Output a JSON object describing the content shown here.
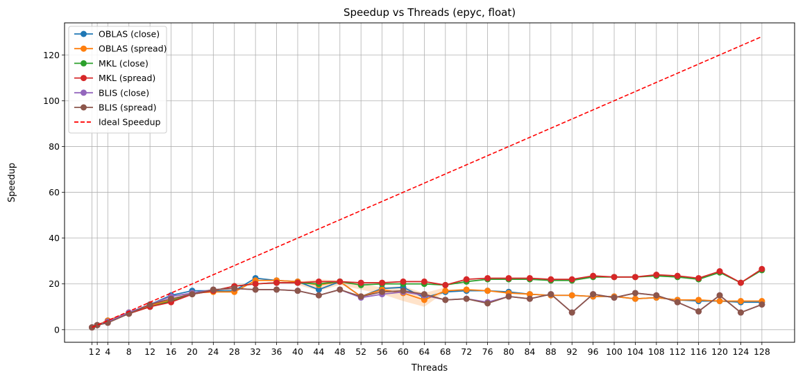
{
  "chart_data": {
    "type": "line",
    "title": "Speedup vs Threads (epyc, float)",
    "xlabel": "Threads",
    "ylabel": "Speedup",
    "xlim": [
      -4.2,
      134.2
    ],
    "ylim": [
      -5.5,
      134
    ],
    "xticks": [
      1,
      2,
      4,
      8,
      12,
      16,
      20,
      24,
      28,
      32,
      36,
      40,
      44,
      48,
      52,
      56,
      60,
      64,
      68,
      72,
      76,
      80,
      84,
      88,
      92,
      96,
      100,
      104,
      108,
      112,
      116,
      120,
      124,
      128
    ],
    "yticks": [
      0,
      20,
      40,
      60,
      80,
      100,
      120
    ],
    "grid": true,
    "legend_position": "top-left",
    "x": [
      1,
      2,
      4,
      8,
      12,
      16,
      20,
      24,
      28,
      32,
      36,
      40,
      44,
      48,
      52,
      56,
      60,
      64,
      68,
      72,
      76,
      80,
      84,
      88,
      92,
      96,
      100,
      104,
      108,
      112,
      116,
      120,
      124,
      128
    ],
    "series": [
      {
        "name": "OBLAS (close)",
        "color": "#1f77b4",
        "dash": false,
        "values": [
          1,
          2,
          4,
          7.5,
          11,
          15,
          17,
          17,
          17,
          22.5,
          21.5,
          21,
          17.5,
          21,
          14.5,
          18,
          18.5,
          14,
          16.5,
          17,
          17,
          16.5,
          15.5,
          15,
          15,
          14.5,
          14.5,
          13.5,
          14,
          13,
          12.5,
          12.5,
          12,
          12
        ]
      },
      {
        "name": "OBLAS (spread)",
        "color": "#ff7f0e",
        "dash": false,
        "values": [
          1,
          2,
          4,
          7.5,
          10.5,
          13,
          16,
          16.5,
          16.5,
          21.5,
          21.5,
          21,
          19.5,
          21,
          14.5,
          17.5,
          16,
          13,
          17,
          17.5,
          17,
          16,
          15.5,
          15,
          15,
          14.5,
          14.5,
          13.5,
          14,
          13,
          13,
          12.5,
          12.5,
          12.5
        ],
        "band": [
          {
            "x": 40,
            "low": 19.5,
            "high": 21
          },
          {
            "x": 44,
            "low": 17,
            "high": 22
          },
          {
            "x": 48,
            "low": 19.5,
            "high": 21.5
          },
          {
            "x": 56,
            "low": 15.5,
            "high": 18.5
          },
          {
            "x": 60,
            "low": 12.5,
            "high": 19
          },
          {
            "x": 64,
            "low": 10,
            "high": 16
          },
          {
            "x": 68,
            "low": 16.5,
            "high": 18.5
          }
        ],
        "band_color": "#ff7f0e"
      },
      {
        "name": "MKL (close)",
        "color": "#2ca02c",
        "dash": false,
        "values": [
          1,
          2,
          3.5,
          7,
          10,
          12.5,
          15.5,
          17,
          19,
          20,
          20.5,
          20.5,
          20,
          21,
          19.5,
          20,
          20,
          20,
          19.5,
          21,
          22,
          22,
          22,
          21.5,
          21.5,
          23,
          23,
          23,
          23.5,
          23,
          22,
          25,
          20.5,
          26
        ]
      },
      {
        "name": "MKL (spread)",
        "color": "#d62728",
        "dash": false,
        "values": [
          1,
          2,
          3.5,
          7,
          10,
          12,
          15.5,
          17,
          19,
          20,
          20.5,
          20.5,
          21,
          21,
          20.5,
          20.5,
          21,
          21,
          19.5,
          22,
          22.5,
          22.5,
          22.5,
          22,
          22,
          23.5,
          23,
          23,
          24,
          23.5,
          22.5,
          25.5,
          20.5,
          26.5
        ]
      },
      {
        "name": "BLIS (close)",
        "color": "#9467bd",
        "dash": false,
        "values": [
          1,
          2,
          3.5,
          7.5,
          11,
          14.5,
          16,
          17.5,
          18,
          17.5,
          17.5,
          17,
          15,
          17.5,
          14,
          15.5,
          16.5,
          15,
          13,
          13.5,
          12,
          14.5,
          13.5,
          15.5,
          7.5,
          15.5,
          14,
          16,
          15,
          12,
          8,
          15,
          7.5,
          11
        ]
      },
      {
        "name": "BLIS (spread)",
        "color": "#8c564b",
        "dash": false,
        "values": [
          1,
          2,
          3,
          7,
          11,
          13.5,
          15.5,
          17.5,
          18,
          17.5,
          17.5,
          17,
          15,
          17.5,
          14.5,
          16.5,
          17,
          15.5,
          13,
          13.5,
          11.5,
          14.5,
          13.5,
          15.5,
          7.5,
          15.5,
          14,
          16,
          15,
          12,
          8,
          15,
          7.5,
          11
        ]
      },
      {
        "name": "Ideal Speedup",
        "color": "#ff0000",
        "dash": true,
        "ideal": true,
        "values": [
          1,
          2,
          4,
          8,
          12,
          16,
          20,
          24,
          28,
          32,
          36,
          40,
          44,
          48,
          52,
          56,
          60,
          64,
          68,
          72,
          76,
          80,
          84,
          88,
          92,
          96,
          100,
          104,
          108,
          112,
          116,
          120,
          124,
          128
        ]
      }
    ]
  }
}
